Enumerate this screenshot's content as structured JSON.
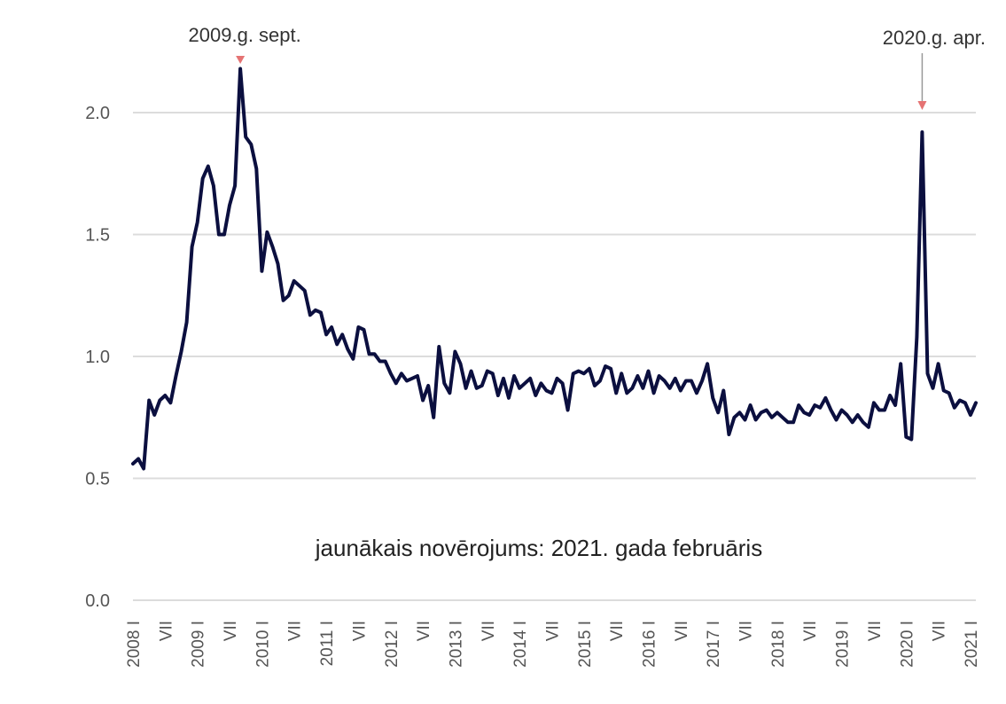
{
  "chart_data": {
    "type": "line",
    "title": "",
    "xlabel": "",
    "ylabel": "",
    "ylim": [
      0,
      2.2
    ],
    "yticks": [
      "0.0",
      "0.5",
      "1.0",
      "1.5",
      "2.0"
    ],
    "grid": true,
    "legend": "none",
    "colors": {
      "line": "#0b0f3f",
      "grid": "#dcdcdc",
      "annotation_arrow": "#e57373",
      "annotation_line": "#999999"
    },
    "x_tick_labels": [
      "2008 I",
      "VII",
      "2009 I",
      "VII",
      "2010 I",
      "VII",
      "2011 I",
      "VII",
      "2012 I",
      "VII",
      "2013 I",
      "VII",
      "2014 I",
      "VII",
      "2015 I",
      "VII",
      "2016 I",
      "VII",
      "2017 I",
      "VII",
      "2018 I",
      "VII",
      "2019 I",
      "VII",
      "2020 I",
      "VII",
      "2021 I"
    ],
    "series": [
      {
        "start": "2008-01",
        "frequency": "monthly",
        "values": [
          0.56,
          0.58,
          0.54,
          0.82,
          0.76,
          0.82,
          0.84,
          0.81,
          0.92,
          1.02,
          1.14,
          1.45,
          1.55,
          1.73,
          1.78,
          1.7,
          1.5,
          1.5,
          1.62,
          1.7,
          2.18,
          1.9,
          1.87,
          1.77,
          1.35,
          1.51,
          1.45,
          1.38,
          1.23,
          1.25,
          1.31,
          1.29,
          1.27,
          1.17,
          1.19,
          1.18,
          1.09,
          1.12,
          1.05,
          1.09,
          1.03,
          0.99,
          1.12,
          1.11,
          1.01,
          1.01,
          0.98,
          0.98,
          0.93,
          0.89,
          0.93,
          0.9,
          0.91,
          0.92,
          0.82,
          0.88,
          0.75,
          1.04,
          0.89,
          0.85,
          1.02,
          0.97,
          0.87,
          0.94,
          0.87,
          0.88,
          0.94,
          0.93,
          0.84,
          0.91,
          0.83,
          0.92,
          0.87,
          0.89,
          0.91,
          0.84,
          0.89,
          0.86,
          0.85,
          0.91,
          0.89,
          0.78,
          0.93,
          0.94,
          0.93,
          0.95,
          0.88,
          0.9,
          0.96,
          0.95,
          0.85,
          0.93,
          0.85,
          0.87,
          0.92,
          0.87,
          0.94,
          0.85,
          0.92,
          0.9,
          0.87,
          0.91,
          0.86,
          0.9,
          0.9,
          0.85,
          0.9,
          0.97,
          0.83,
          0.77,
          0.86,
          0.68,
          0.75,
          0.77,
          0.74,
          0.8,
          0.74,
          0.77,
          0.78,
          0.75,
          0.77,
          0.75,
          0.73,
          0.73,
          0.8,
          0.77,
          0.76,
          0.8,
          0.79,
          0.83,
          0.78,
          0.74,
          0.78,
          0.76,
          0.73,
          0.76,
          0.73,
          0.71,
          0.81,
          0.78,
          0.78,
          0.84,
          0.8,
          0.97,
          0.67,
          0.66,
          1.08,
          1.92,
          0.93,
          0.87,
          0.97,
          0.86,
          0.85,
          0.79,
          0.82,
          0.81,
          0.76,
          0.81
        ]
      }
    ],
    "annotations": [
      {
        "label": "2009.g. sept.",
        "x": "2009-09",
        "y": 2.18
      },
      {
        "label": "2020.g. apr.",
        "x": "2020-04",
        "y": 1.92
      }
    ],
    "note": "jaunākais novērojums: 2021. gada februāris"
  }
}
